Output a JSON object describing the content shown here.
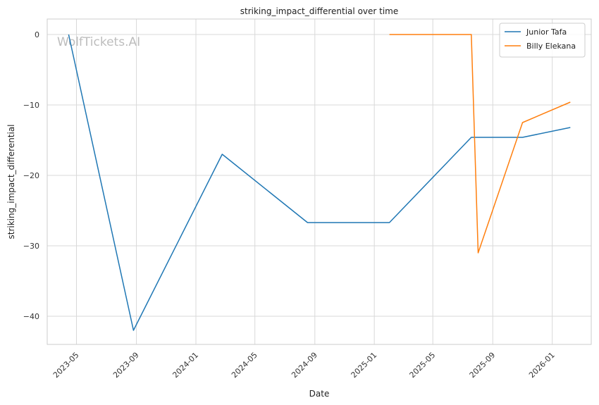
{
  "chart_data": {
    "type": "line",
    "title": "striking_impact_differential over time",
    "xlabel": "Date",
    "ylabel": "striking_impact_differential",
    "watermark": "WolfTickets.AI",
    "x_ticks": [
      "2023-05",
      "2023-09",
      "2024-01",
      "2024-05",
      "2024-09",
      "2025-01",
      "2025-05",
      "2025-09",
      "2026-01"
    ],
    "y_ticks": [
      0,
      -10,
      -20,
      -30,
      -40
    ],
    "xlim": [
      "2023-03-02",
      "2026-03-22"
    ],
    "ylim": [
      -44,
      2.2
    ],
    "grid": true,
    "legend_position": "top-right",
    "series": [
      {
        "name": "Junior Tafa",
        "color": "#1f77b4",
        "points": [
          {
            "x": "2023-04-15",
            "y": 0
          },
          {
            "x": "2023-08-26",
            "y": -42
          },
          {
            "x": "2024-02-24",
            "y": -17
          },
          {
            "x": "2024-08-17",
            "y": -26.7
          },
          {
            "x": "2025-02-01",
            "y": -26.7
          },
          {
            "x": "2025-07-19",
            "y": -14.6
          },
          {
            "x": "2025-11-01",
            "y": -14.6
          },
          {
            "x": "2026-02-07",
            "y": -13.2
          }
        ]
      },
      {
        "name": "Billy Elekana",
        "color": "#ff7f0e",
        "points": [
          {
            "x": "2025-02-01",
            "y": 0
          },
          {
            "x": "2025-07-19",
            "y": 0
          },
          {
            "x": "2025-08-02",
            "y": -31
          },
          {
            "x": "2025-11-01",
            "y": -12.5
          },
          {
            "x": "2026-02-07",
            "y": -9.6
          }
        ]
      }
    ]
  }
}
